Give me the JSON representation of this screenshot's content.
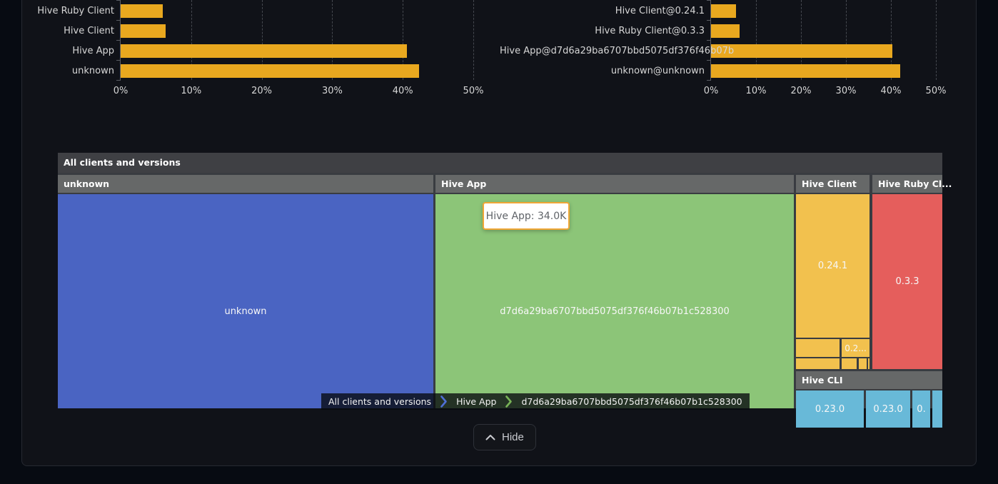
{
  "chart_data": [
    {
      "id": "clients-share",
      "type": "bar",
      "orientation": "horizontal",
      "categories": [
        "Hive Ruby Client",
        "Hive Client",
        "Hive App",
        "unknown"
      ],
      "values": [
        6.0,
        6.4,
        40.6,
        42.3
      ],
      "unit": "%",
      "x_ticks": [
        "0%",
        "10%",
        "20%",
        "30%",
        "40%",
        "50%"
      ],
      "xlim": [
        0,
        50
      ],
      "bar_color": "#e9a81f",
      "grid": "vertical-dashed",
      "legend": "none"
    },
    {
      "id": "client-versions-share",
      "type": "bar",
      "orientation": "horizontal",
      "categories": [
        "Hive Client@0.24.1",
        "Hive Ruby Client@0.3.3",
        "Hive App@d7d6a29ba6707bbd5075df376f46b07b",
        "unknown@unknown"
      ],
      "values": [
        5.6,
        6.3,
        40.3,
        42.1
      ],
      "unit": "%",
      "x_ticks": [
        "0%",
        "10%",
        "20%",
        "30%",
        "40%",
        "50%"
      ],
      "xlim": [
        0,
        50
      ],
      "bar_color": "#e9a81f",
      "grid": "vertical-dashed",
      "legend": "none"
    },
    {
      "id": "clients-treemap",
      "type": "treemap",
      "title": "All clients and versions",
      "nodes": [
        {
          "name": "unknown",
          "color": "#4a64c2",
          "children": [
            {
              "name": "unknown"
            }
          ]
        },
        {
          "name": "Hive App",
          "color": "#8cc578",
          "value": "34.0K",
          "children": [
            {
              "name": "d7d6a29ba6707bbd5075df376f46b07b1c528300"
            }
          ]
        },
        {
          "name": "Hive Client",
          "color": "#f2c14e",
          "children": [
            {
              "name": "0.24.1"
            },
            {
              "name": ""
            },
            {
              "name": "0.2..."
            },
            {
              "name": ""
            },
            {
              "name": ""
            },
            {
              "name": ""
            },
            {
              "name": ""
            }
          ]
        },
        {
          "name": "Hive Ruby Cl...",
          "color": "#e55e5c",
          "children": [
            {
              "name": "0.3.3"
            }
          ]
        },
        {
          "name": "Hive CLI",
          "color": "#68b9d8",
          "children": [
            {
              "name": "0.23.0"
            },
            {
              "name": "0.23.0"
            },
            {
              "name": "0."
            },
            {
              "name": ""
            }
          ]
        }
      ]
    }
  ],
  "ui": {
    "tooltip": {
      "text": "Hive App: 34.0K",
      "border_color": "#f0a636"
    },
    "breadcrumb": {
      "items": [
        "All clients and versions",
        "Hive App",
        "d7d6a29ba6707bbd5075df376f46b07b1c528300"
      ],
      "separator_colors": [
        "#4f6fd6",
        "#79b457"
      ]
    },
    "hide_button": {
      "label": "Hide"
    }
  }
}
